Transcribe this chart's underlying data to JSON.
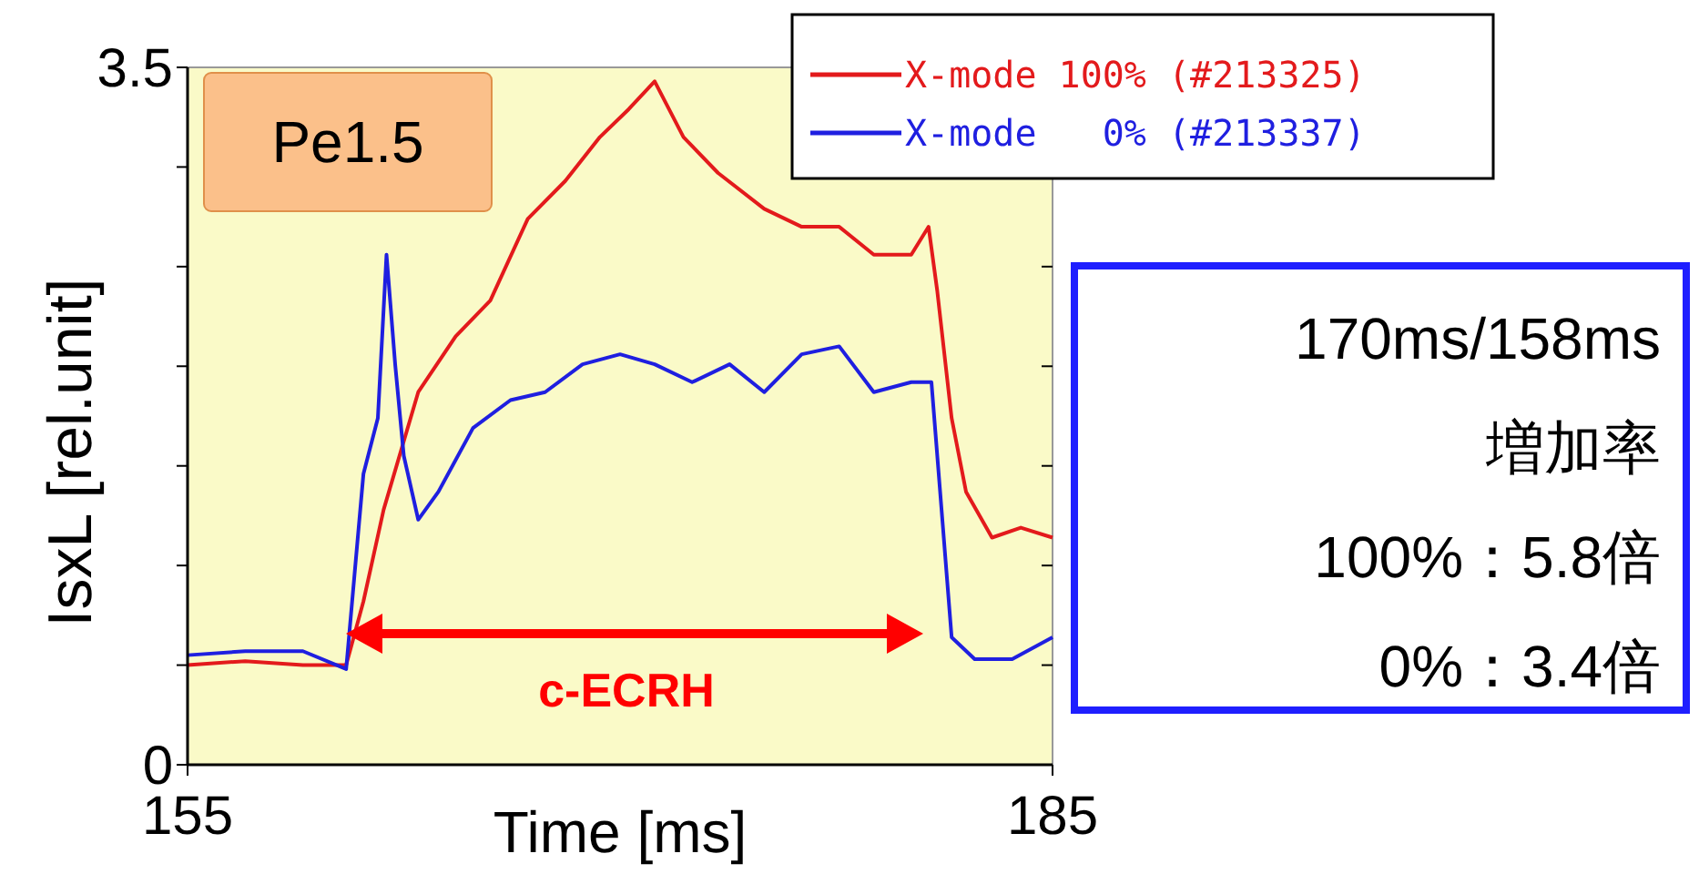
{
  "chart_data": {
    "type": "line",
    "xlabel": "Time [ms]",
    "ylabel": "IsxL [rel.unit]",
    "xlim": [
      155,
      185
    ],
    "ylim": [
      0,
      3.5
    ],
    "xticks": [
      155,
      185
    ],
    "yticks": [
      0,
      {
        "value": 0.5,
        "label": null
      },
      {
        "value": 1,
        "label": null
      },
      {
        "value": 1.5,
        "label": null
      },
      {
        "value": 2,
        "label": null
      },
      {
        "value": 2.5,
        "label": null
      },
      {
        "value": 3,
        "label": null
      },
      3.5
    ],
    "legend": "top right",
    "grid": false,
    "series": [
      {
        "name": "X-mode 100% (#213325)",
        "color": "#e31a1c",
        "x": [
          155,
          157,
          159,
          160.5,
          161.1,
          161.8,
          163,
          164.3,
          165.5,
          166.8,
          168.1,
          169.3,
          170.3,
          171.2,
          172.2,
          173.4,
          175,
          176.3,
          177.6,
          178.8,
          180.1,
          180.7,
          181,
          181.5,
          182,
          182.9,
          183.9,
          185
        ],
        "values": [
          0.5,
          0.52,
          0.5,
          0.5,
          0.82,
          1.28,
          1.87,
          2.15,
          2.33,
          2.74,
          2.93,
          3.15,
          3.29,
          3.43,
          3.15,
          2.97,
          2.79,
          2.7,
          2.7,
          2.56,
          2.56,
          2.7,
          2.38,
          1.74,
          1.37,
          1.14,
          1.19,
          1.14
        ]
      },
      {
        "name": "X-mode   0% (#213337)",
        "color": "#1f1fe0",
        "x": [
          155,
          157,
          159,
          160.5,
          161.1,
          161.6,
          161.9,
          162.2,
          162.5,
          163,
          163.7,
          164.9,
          166.2,
          167.4,
          168.7,
          170,
          171.2,
          172.5,
          173.8,
          175,
          176.3,
          177.6,
          178.8,
          180.1,
          180.8,
          181.2,
          181.5,
          182.3,
          183.6,
          185
        ],
        "values": [
          0.55,
          0.57,
          0.57,
          0.48,
          1.46,
          1.74,
          2.56,
          2.01,
          1.55,
          1.23,
          1.37,
          1.69,
          1.83,
          1.87,
          2.01,
          2.06,
          2.01,
          1.92,
          2.01,
          1.87,
          2.06,
          2.1,
          1.87,
          1.92,
          1.92,
          1.19,
          0.64,
          0.53,
          0.53,
          0.64
        ]
      }
    ],
    "annotations": [
      "Pe1.5",
      "c-ECRH",
      "170ms/158ms",
      "増加率",
      "100%：5.8倍",
      "0%：3.4倍"
    ]
  }
}
